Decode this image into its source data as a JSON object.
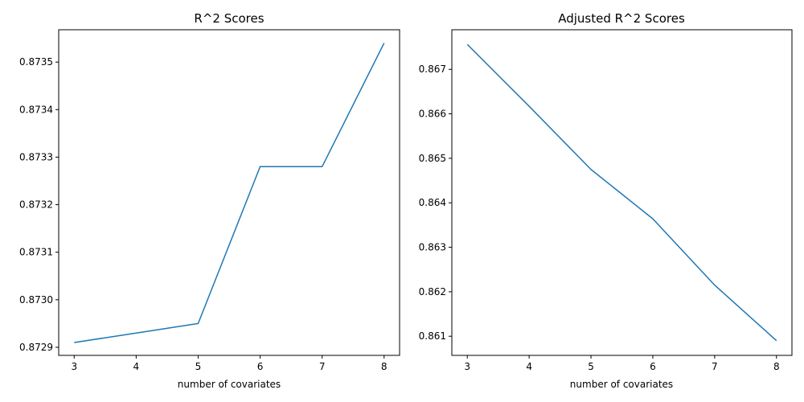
{
  "chart_data": [
    {
      "type": "line",
      "title": "R^2 Scores",
      "xlabel": "number of covariates",
      "ylabel": "",
      "x": [
        3,
        4,
        5,
        6,
        7,
        8
      ],
      "series": [
        {
          "values": [
            0.87291,
            0.87293,
            0.87295,
            0.87328,
            0.87328,
            0.87354
          ],
          "color": "#1f77b4"
        }
      ],
      "xlim": [
        2.75,
        8.25
      ],
      "ylim": [
        0.872883,
        0.873568
      ],
      "xticks": [
        3,
        4,
        5,
        6,
        7,
        8
      ],
      "xtick_labels": [
        "3",
        "4",
        "5",
        "6",
        "7",
        "8"
      ],
      "yticks": [
        0.8729,
        0.873,
        0.8731,
        0.8732,
        0.8733,
        0.8734,
        0.8735
      ],
      "ytick_labels": [
        "0.8729",
        "0.8730",
        "0.8731",
        "0.8732",
        "0.8733",
        "0.8734",
        "0.8735"
      ],
      "grid": false
    },
    {
      "type": "line",
      "title": "Adjusted R^2 Scores",
      "xlabel": "number of covariates",
      "ylabel": "",
      "x": [
        3,
        4,
        5,
        6,
        7,
        8
      ],
      "series": [
        {
          "values": [
            0.86756,
            0.86617,
            0.86475,
            0.86364,
            0.86215,
            0.8609
          ],
          "color": "#1f77b4"
        }
      ],
      "xlim": [
        2.75,
        8.25
      ],
      "ylim": [
        0.86057,
        0.86789
      ],
      "xticks": [
        3,
        4,
        5,
        6,
        7,
        8
      ],
      "xtick_labels": [
        "3",
        "4",
        "5",
        "6",
        "7",
        "8"
      ],
      "yticks": [
        0.861,
        0.862,
        0.863,
        0.864,
        0.865,
        0.866,
        0.867
      ],
      "ytick_labels": [
        "0.861",
        "0.862",
        "0.863",
        "0.864",
        "0.865",
        "0.866",
        "0.867"
      ],
      "grid": false
    }
  ]
}
